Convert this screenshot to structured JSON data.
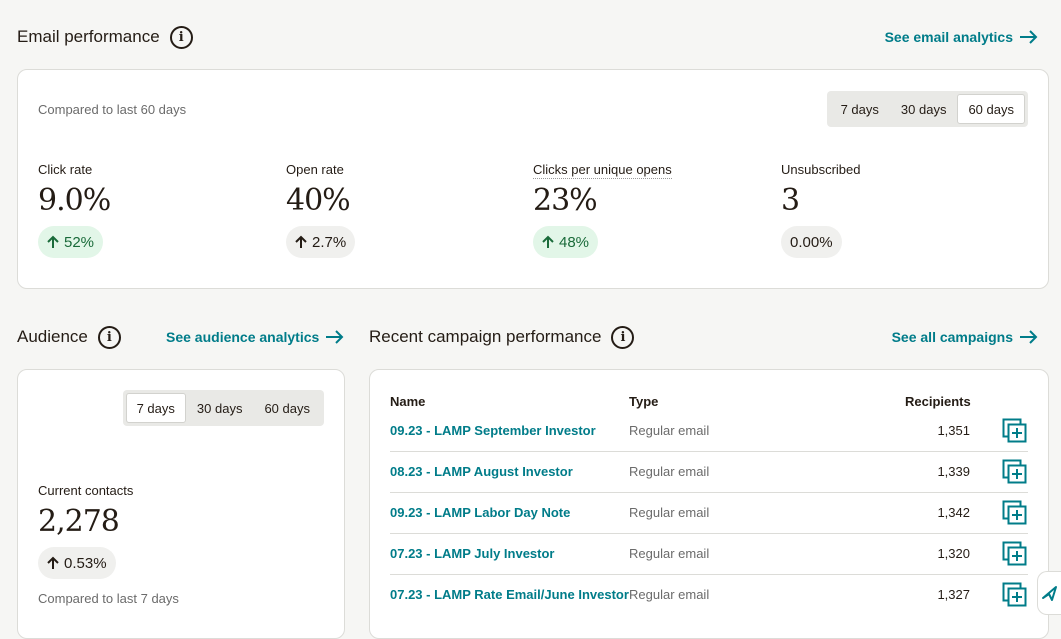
{
  "email_performance": {
    "title": "Email performance",
    "link": "See email analytics",
    "compared": "Compared to last 60 days",
    "ranges": [
      "7 days",
      "30 days",
      "60 days"
    ],
    "metrics": [
      {
        "label": "Click rate",
        "value": "9.0%",
        "change": "52%",
        "dir": "up"
      },
      {
        "label": "Open rate",
        "value": "40%",
        "change": "2.7%",
        "dir": "up"
      },
      {
        "label": "Clicks per unique opens",
        "value": "23%",
        "change": "48%",
        "dir": "up"
      },
      {
        "label": "Unsubscribed",
        "value": "3",
        "change": "0.00%",
        "dir": "none"
      }
    ]
  },
  "audience": {
    "title": "Audience",
    "link": "See audience analytics",
    "ranges": [
      "7 days",
      "30 days",
      "60 days"
    ],
    "label": "Current contacts",
    "value": "2,278",
    "change": "0.53%",
    "compared": "Compared to last 7 days"
  },
  "campaigns": {
    "title": "Recent campaign performance",
    "link": "See all campaigns",
    "headers": {
      "name": "Name",
      "type": "Type",
      "recipients": "Recipients"
    },
    "rows": [
      {
        "name": "09.23 - LAMP September Investor",
        "type": "Regular email",
        "recipients": "1,351"
      },
      {
        "name": "08.23 - LAMP August Investor",
        "type": "Regular email",
        "recipients": "1,339"
      },
      {
        "name": "09.23 - LAMP Labor Day Note",
        "type": "Regular email",
        "recipients": "1,342"
      },
      {
        "name": "07.23 - LAMP July Investor",
        "type": "Regular email",
        "recipients": "1,320"
      },
      {
        "name": "07.23 - LAMP Rate Email/June Investor",
        "type": "Regular email",
        "recipients": "1,327"
      }
    ]
  },
  "colors": {
    "accent": "#007c89",
    "positive_bg": "#e2f6e8",
    "text": "#241c15"
  }
}
